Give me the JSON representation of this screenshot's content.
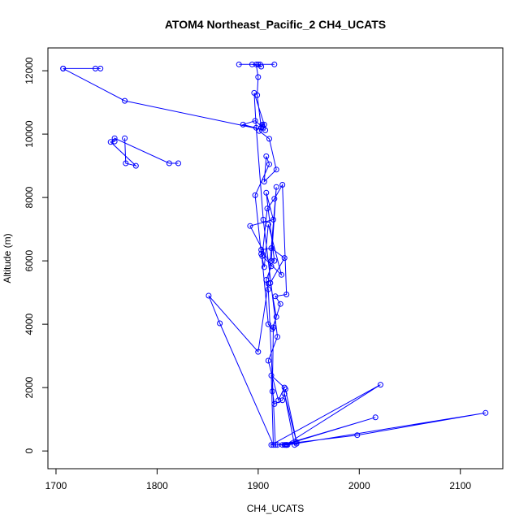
{
  "chart_data": {
    "type": "line",
    "title": "ATOM4 Northeast_Pacific_2 CH4_UCATS",
    "xlabel": "CH4_UCATS",
    "ylabel": "Altitude (m)",
    "xlim": [
      1692,
      2142
    ],
    "ylim": [
      -560,
      12720
    ],
    "x_ticks": [
      1700,
      1800,
      1900,
      2000,
      2100
    ],
    "x_tick_labels": [
      "1700",
      "1800",
      "1900",
      "2000",
      "2100"
    ],
    "y_ticks": [
      0,
      2000,
      4000,
      6000,
      8000,
      10000,
      12000
    ],
    "y_tick_labels": [
      "0",
      "2000",
      "4000",
      "6000",
      "8000",
      "10000",
      "12000"
    ],
    "grid": false,
    "legend": false,
    "series_color": "#0000ff",
    "marker": "open-circle",
    "series": [
      {
        "x": [
          1707,
          1739,
          1744,
          1707,
          1768,
          1907,
          1885,
          1897,
          1905,
          1904,
          1901,
          1911,
          1918,
          1906,
          1908,
          1911,
          1897,
          1903,
          1906,
          1910,
          1923,
          1904,
          1909,
          1916,
          1924,
          1928,
          1917,
          1922,
          1914,
          1910,
          1903,
          1913,
          1926,
          1912,
          1918,
          1915,
          1914,
          1916,
          1924,
          1927,
          1938,
          1926,
          1936,
          1938,
          1919,
          1998,
          2125,
          1929,
          1928,
          1926,
          2016,
          1924,
          1913,
          2021,
          1927,
          1928,
          1917,
          1910,
          1908,
          1913,
          1892,
          1915,
          1908,
          1916,
          1913,
          1918,
          1910,
          1900,
          1851,
          1862,
          1915,
          1913,
          1926,
          1920,
          1910,
          1919,
          1905,
          1898,
          1896,
          1906,
          1904,
          1903,
          1899,
          1900,
          1898,
          1894,
          1903,
          1900,
          1902,
          1916,
          1881
        ],
        "y": [
          12070,
          12070,
          12070,
          12070,
          11050,
          10120,
          10300,
          10420,
          10200,
          10250,
          10100,
          9850,
          8880,
          8500,
          9300,
          9050,
          8070,
          6220,
          5800,
          7150,
          5560,
          6150,
          7650,
          7960,
          8400,
          4940,
          4880,
          4640,
          3850,
          4000,
          6350,
          6400,
          6090,
          5300,
          4230,
          3900,
          1880,
          1480,
          1600,
          1950,
          280,
          1800,
          190,
          230,
          190,
          500,
          1200,
          190,
          190,
          190,
          1060,
          190,
          190,
          2090,
          190,
          190,
          190,
          5100,
          5400,
          5830,
          7100,
          7300,
          8150,
          6000,
          6000,
          8330,
          5280,
          3130,
          4900,
          4030,
          190,
          2380,
          2000,
          1600,
          2850,
          3600,
          7300,
          10200,
          11300,
          10300,
          10300,
          10200,
          11230,
          11800,
          12200,
          12200,
          12130,
          12200,
          12200,
          12200,
          12200
        ]
      },
      {
        "x": [
          1768,
          1769,
          1779,
          1754,
          1758,
          1758,
          1812,
          1821
        ],
        "y": [
          9870,
          9080,
          9000,
          9750,
          9770,
          9870,
          9080,
          9080
        ]
      }
    ]
  }
}
